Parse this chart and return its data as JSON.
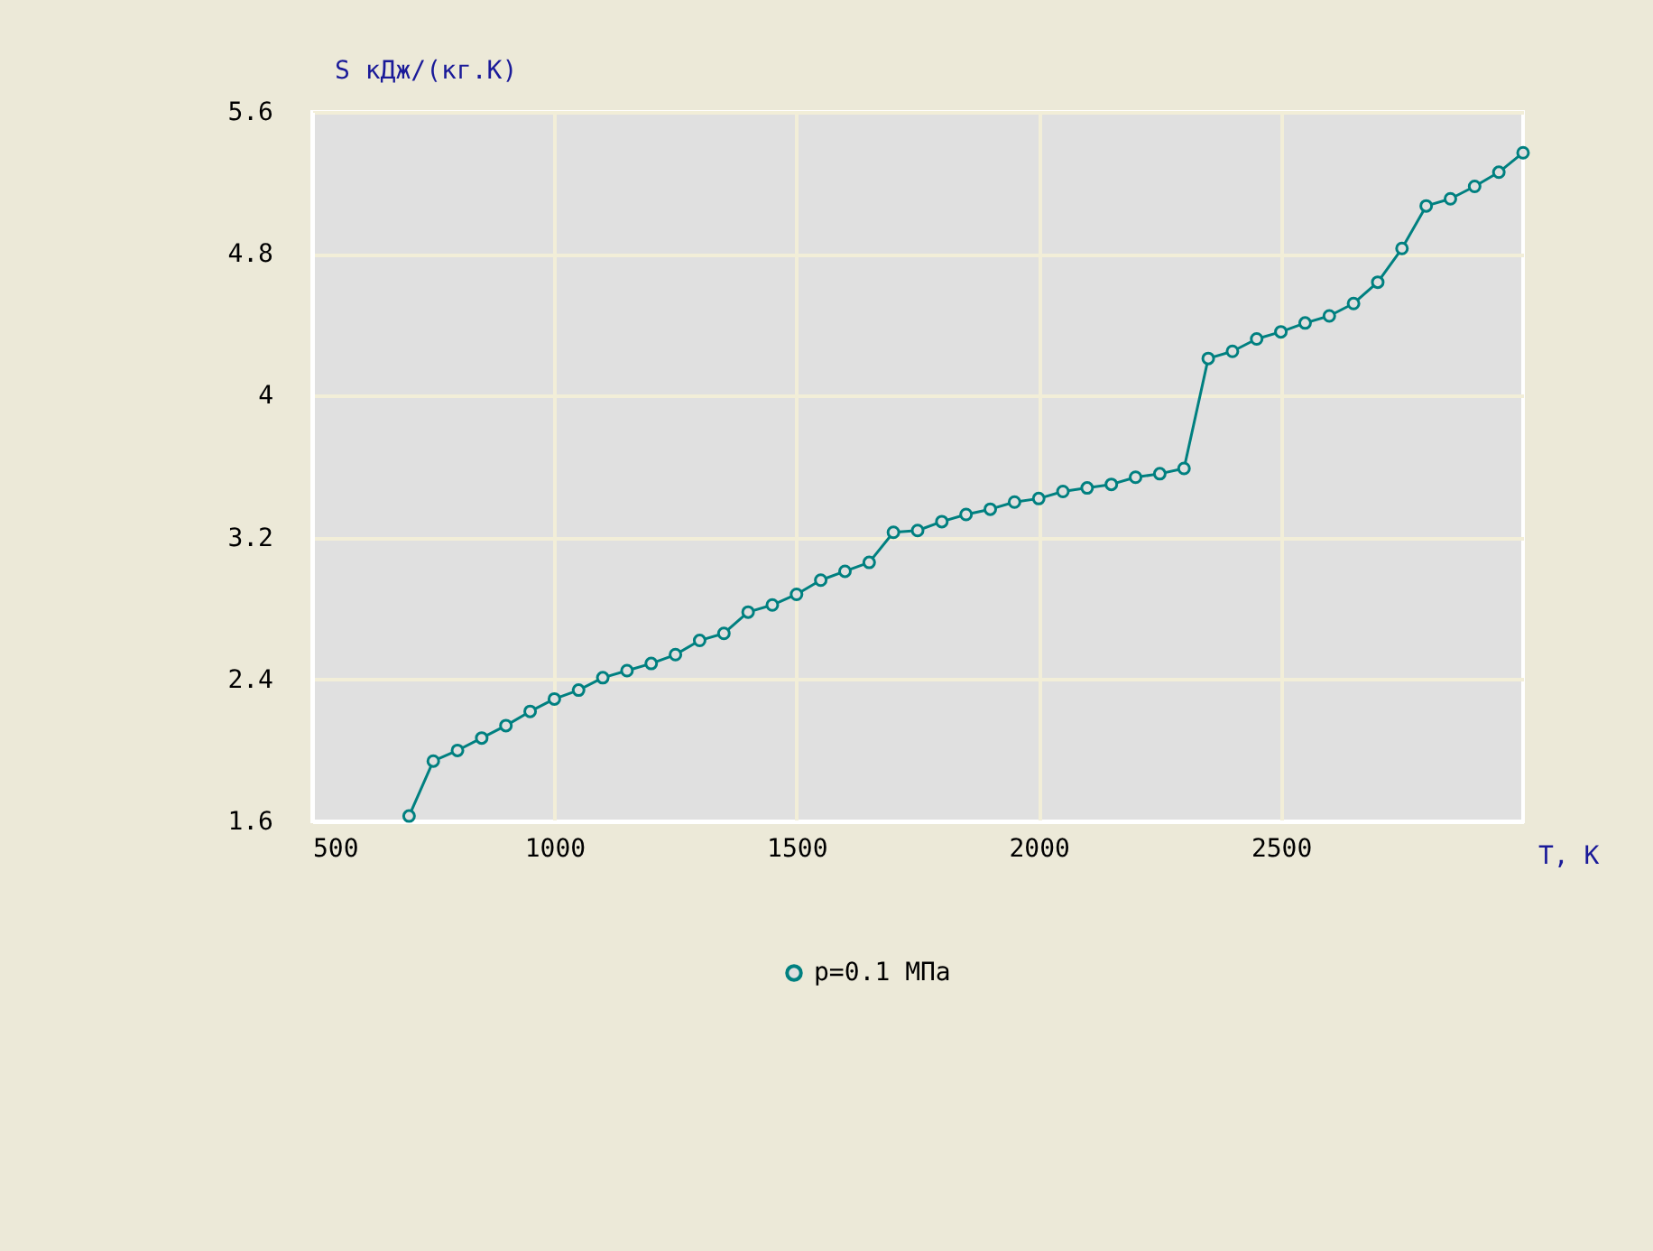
{
  "chart_data": {
    "type": "line",
    "xlabel": "T,  K",
    "ylabel": "S  кДж/(кг.К)",
    "x": [
      700,
      750,
      800,
      850,
      900,
      950,
      1000,
      1050,
      1100,
      1150,
      1200,
      1250,
      1300,
      1350,
      1400,
      1450,
      1500,
      1550,
      1600,
      1650,
      1700,
      1750,
      1800,
      1850,
      1900,
      1950,
      2000,
      2050,
      2100,
      2150,
      2200,
      2250,
      2300,
      2350,
      2400,
      2450,
      2500,
      2550,
      2600,
      2650,
      2700,
      2750,
      2800,
      2850,
      2900,
      2950,
      3000
    ],
    "series": [
      {
        "name": "p=0.1 МПа",
        "color": "#008080",
        "values": [
          1.63,
          1.94,
          2.0,
          2.07,
          2.14,
          2.22,
          2.29,
          2.34,
          2.41,
          2.45,
          2.49,
          2.54,
          2.62,
          2.66,
          2.78,
          2.82,
          2.88,
          2.96,
          3.01,
          3.06,
          3.23,
          3.24,
          3.29,
          3.33,
          3.36,
          3.4,
          3.42,
          3.46,
          3.48,
          3.5,
          3.54,
          3.56,
          3.59,
          4.21,
          4.25,
          4.32,
          4.36,
          4.41,
          4.45,
          4.52,
          4.64,
          4.83,
          5.07,
          5.11,
          5.18,
          5.26,
          5.37
        ]
      }
    ],
    "xlim": [
      500,
      3000
    ],
    "xticks": [
      500,
      1000,
      1500,
      2000,
      2500
    ],
    "ylim": [
      1.6,
      5.6
    ],
    "yticks": [
      1.6,
      2.4,
      3.2,
      4,
      4.8,
      5.6
    ],
    "grid": true,
    "legend": "bottom",
    "marker": "circle",
    "line_style": "solid"
  }
}
